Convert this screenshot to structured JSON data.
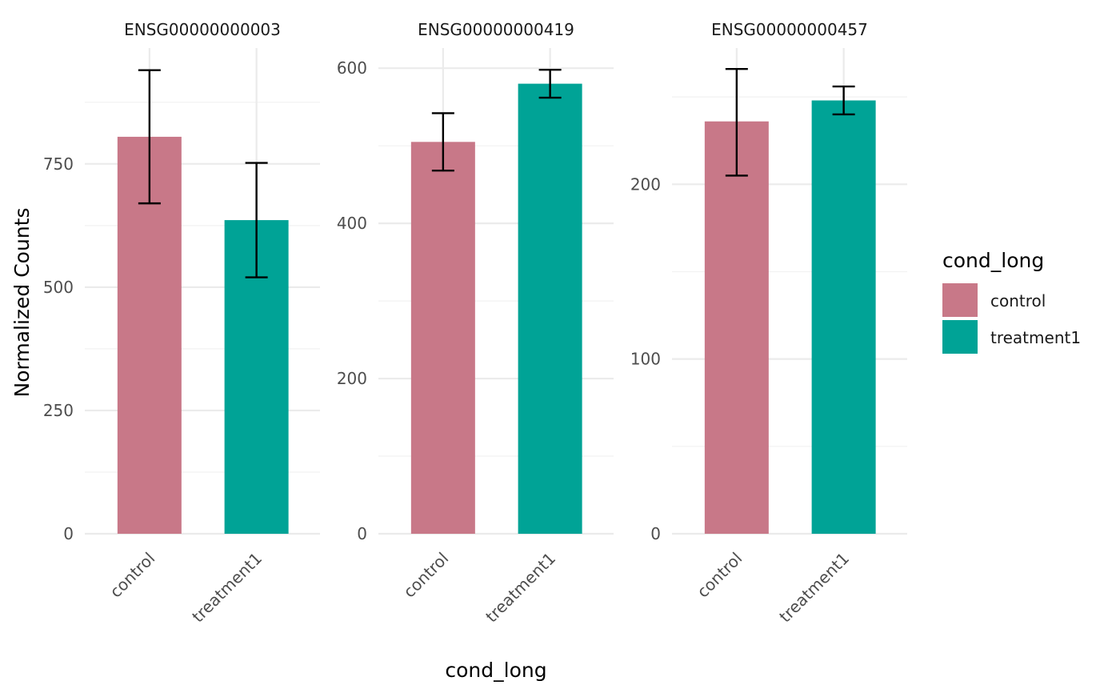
{
  "chart_data": {
    "type": "bar",
    "ylabel": "Normalized Counts",
    "xlabel": "cond_long",
    "categories": [
      "control",
      "treatment1"
    ],
    "colors": {
      "control": "#C87888",
      "treatment1": "#00A396"
    },
    "legend": {
      "title": "cond_long",
      "entries": [
        "control",
        "treatment1"
      ],
      "position": "right"
    },
    "grid": true,
    "facets": [
      {
        "title": "ENSG00000000003",
        "ylim": [
          0,
          985
        ],
        "yticks": [
          0,
          250,
          500,
          750
        ],
        "values": [
          805,
          636
        ],
        "error_low": [
          670,
          520
        ],
        "error_high": [
          940,
          752
        ]
      },
      {
        "title": "ENSG00000000419",
        "ylim": [
          0,
          626
        ],
        "yticks": [
          0,
          200,
          400,
          600
        ],
        "values": [
          505,
          580
        ],
        "error_low": [
          468,
          562
        ],
        "error_high": [
          542,
          598
        ]
      },
      {
        "title": "ENSG00000000457",
        "ylim": [
          0,
          278
        ],
        "yticks": [
          0,
          100,
          200
        ],
        "values": [
          236,
          248
        ],
        "error_low": [
          205,
          240
        ],
        "error_high": [
          266,
          256
        ]
      }
    ]
  }
}
